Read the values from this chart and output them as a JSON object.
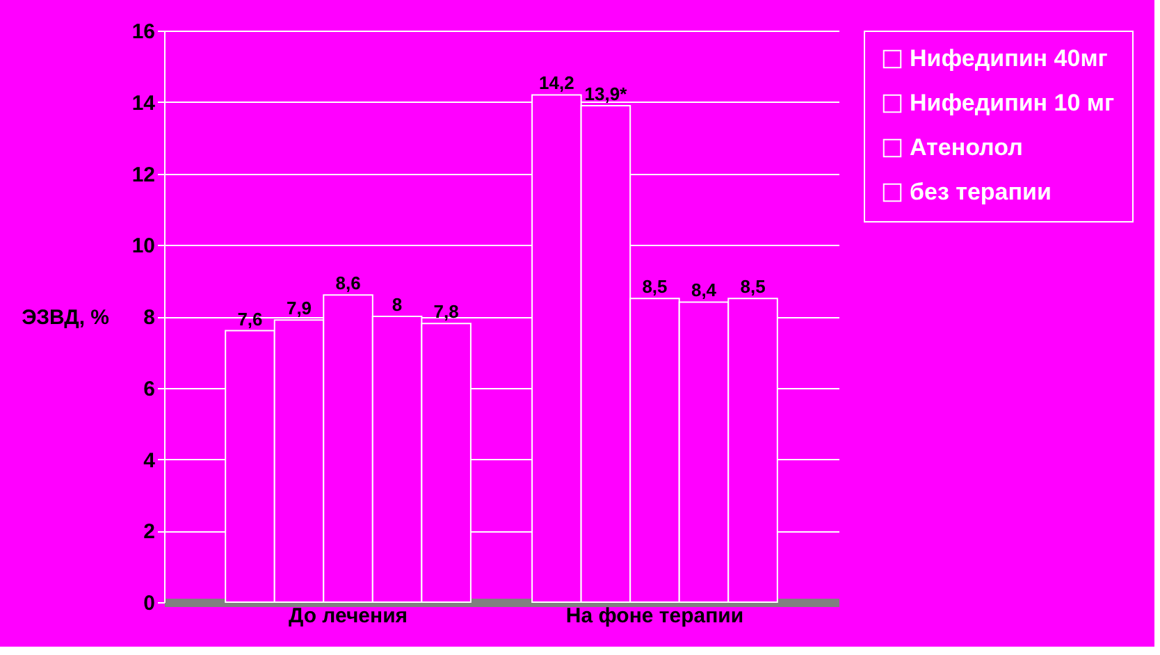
{
  "chart_data": {
    "type": "bar",
    "ylabel": "ЭЗВД, %",
    "categories": [
      "До лечения",
      "На фоне терапии"
    ],
    "series": [
      {
        "name": "Нифедипин 40мг",
        "color": "#ff00ff",
        "values": [
          7.6,
          14.2
        ],
        "value_labels": [
          "7,6",
          "14,2"
        ]
      },
      {
        "name": "Нифедипин 10 мг",
        "color": "#ff00ff",
        "values": [
          7.9,
          13.9
        ],
        "value_labels": [
          "7,9",
          "13,9*"
        ]
      },
      {
        "color": "#ff00ff",
        "values": [
          8.6,
          8.5
        ],
        "value_labels": [
          "8,6",
          "8,5"
        ]
      },
      {
        "name": "Атенолол",
        "color": "#ff00ff",
        "values": [
          8,
          8.4
        ],
        "value_labels": [
          "8",
          "8,4"
        ]
      },
      {
        "name": "без терапии",
        "color": "#ff00ff",
        "values": [
          7.8,
          8.5
        ],
        "value_labels": [
          "7,8",
          "8,5"
        ]
      }
    ],
    "ylim": [
      0,
      16
    ],
    "yticks": [
      0,
      2,
      4,
      6,
      8,
      10,
      12,
      14,
      16
    ],
    "grid": "y",
    "legend": "right"
  }
}
